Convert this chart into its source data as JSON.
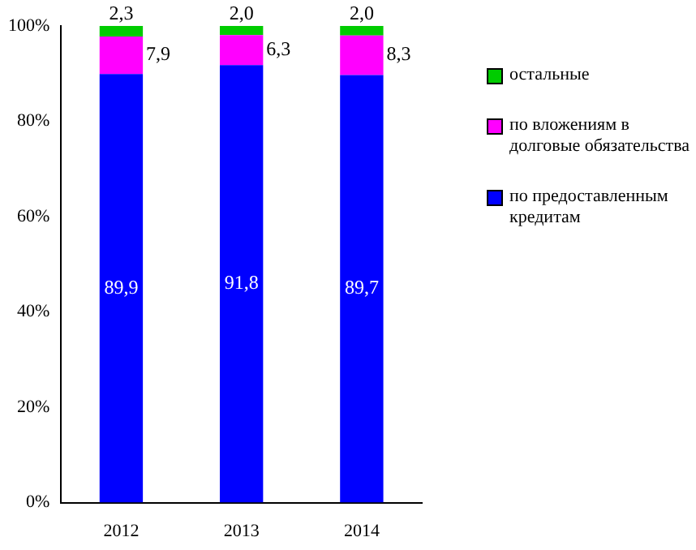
{
  "chart_data": {
    "type": "bar",
    "stacked": true,
    "categories": [
      "2012",
      "2013",
      "2014"
    ],
    "series": [
      {
        "name": "по предоставленным кредитам",
        "color": "#0000ff",
        "values": [
          89.9,
          91.8,
          89.7
        ],
        "value_labels": [
          "89,9",
          "91,8",
          "89,7"
        ]
      },
      {
        "name": "по вложениям в долговые обязательства",
        "color": "#ff00ff",
        "values": [
          7.9,
          6.3,
          8.3
        ],
        "value_labels": [
          "7,9",
          "6,3",
          "8,3"
        ]
      },
      {
        "name": "остальные",
        "color": "#00cc00",
        "values": [
          2.3,
          2.0,
          2.0
        ],
        "value_labels": [
          "2,3",
          "2,0",
          "2,0"
        ]
      }
    ],
    "ylim": [
      0,
      100
    ],
    "yticks": [
      {
        "value": 0,
        "label": "0%"
      },
      {
        "value": 20,
        "label": "20%"
      },
      {
        "value": 40,
        "label": "40%"
      },
      {
        "value": 60,
        "label": "60%"
      },
      {
        "value": 80,
        "label": "80%"
      },
      {
        "value": 100,
        "label": "100%"
      }
    ],
    "grid": false,
    "legend": "right"
  }
}
